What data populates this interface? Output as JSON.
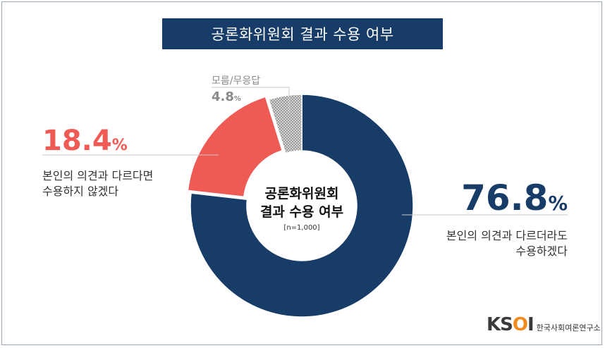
{
  "title": "공론화위원회 결과 수용 여부",
  "center": {
    "line1": "공론화위원회",
    "line2": "결과 수용 여부",
    "sample": "[n=1,000]"
  },
  "labels": {
    "accept_pct": "76.8",
    "accept_line1": "본인의 의견과 다르더라도",
    "accept_line2": "수용하겠다",
    "reject_pct": "18.4",
    "reject_line1": "본인의 의견과 다르다면",
    "reject_line2": "수용하지 않겠다",
    "dk_name": "모름/무응답",
    "dk_pct": "4.8",
    "pct_sign": "%"
  },
  "logo": {
    "mark_prefix": "KS",
    "mark_o": "O",
    "mark_suffix": "I",
    "org": "한국사회여론연구소"
  },
  "chart_data": {
    "type": "pie",
    "donut": true,
    "categories": [
      "본인의 의견과 다르더라도 수용하겠다",
      "본인의 의견과 다르다면 수용하지 않겠다",
      "모름/무응답"
    ],
    "values": [
      76.8,
      18.4,
      4.8
    ],
    "colors": [
      "#173c68",
      "#f05a55",
      "#777777"
    ],
    "title": "공론화위원회 결과 수용 여부",
    "unit": "%"
  }
}
